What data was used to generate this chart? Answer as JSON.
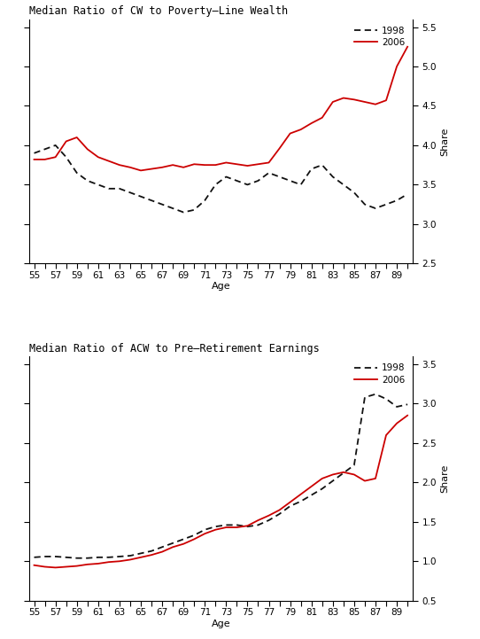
{
  "panel1": {
    "title": "Median Ratio of CW to Poverty–Line Wealth",
    "ylabel": "Share",
    "xlabel": "Age",
    "ylim": [
      2.5,
      5.6
    ],
    "yticks": [
      2.5,
      3.0,
      3.5,
      4.0,
      4.5,
      5.0,
      5.5
    ],
    "ages": [
      55,
      56,
      57,
      58,
      59,
      60,
      61,
      62,
      63,
      64,
      65,
      66,
      67,
      68,
      69,
      70,
      71,
      72,
      73,
      74,
      75,
      76,
      77,
      78,
      79,
      80,
      81,
      82,
      83,
      84,
      85,
      86,
      87,
      88,
      89,
      90
    ],
    "line_1998": [
      3.9,
      3.95,
      4.0,
      3.85,
      3.65,
      3.55,
      3.5,
      3.45,
      3.45,
      3.4,
      3.35,
      3.3,
      3.25,
      3.2,
      3.15,
      3.18,
      3.3,
      3.5,
      3.6,
      3.55,
      3.5,
      3.55,
      3.65,
      3.6,
      3.55,
      3.5,
      3.7,
      3.75,
      3.6,
      3.5,
      3.4,
      3.25,
      3.2,
      3.25,
      3.3,
      3.38
    ],
    "line_2006": [
      3.82,
      3.82,
      3.85,
      4.05,
      4.1,
      3.95,
      3.85,
      3.8,
      3.75,
      3.72,
      3.68,
      3.7,
      3.72,
      3.75,
      3.72,
      3.76,
      3.75,
      3.75,
      3.78,
      3.76,
      3.74,
      3.76,
      3.78,
      3.96,
      4.15,
      4.2,
      4.28,
      4.35,
      4.55,
      4.6,
      4.58,
      4.55,
      4.52,
      4.57,
      5.0,
      5.25
    ],
    "color_1998": "#111111",
    "color_2006": "#cc0000"
  },
  "panel2": {
    "title": "Median Ratio of ACW to Pre–Retirement Earnings",
    "ylabel": "Share",
    "xlabel": "Age",
    "ylim": [
      0.5,
      3.6
    ],
    "yticks": [
      0.5,
      1.0,
      1.5,
      2.0,
      2.5,
      3.0,
      3.5
    ],
    "ages": [
      55,
      56,
      57,
      58,
      59,
      60,
      61,
      62,
      63,
      64,
      65,
      66,
      67,
      68,
      69,
      70,
      71,
      72,
      73,
      74,
      75,
      76,
      77,
      78,
      79,
      80,
      81,
      82,
      83,
      84,
      85,
      86,
      87,
      88,
      89,
      90
    ],
    "line_1998": [
      1.05,
      1.06,
      1.06,
      1.05,
      1.04,
      1.04,
      1.05,
      1.05,
      1.06,
      1.07,
      1.1,
      1.13,
      1.18,
      1.23,
      1.28,
      1.33,
      1.4,
      1.44,
      1.46,
      1.46,
      1.44,
      1.46,
      1.52,
      1.6,
      1.7,
      1.76,
      1.84,
      1.92,
      2.02,
      2.12,
      2.22,
      3.08,
      3.12,
      3.06,
      2.96,
      2.99
    ],
    "line_2006": [
      0.95,
      0.93,
      0.92,
      0.93,
      0.94,
      0.96,
      0.97,
      0.99,
      1.0,
      1.02,
      1.05,
      1.08,
      1.12,
      1.18,
      1.22,
      1.28,
      1.35,
      1.4,
      1.43,
      1.43,
      1.45,
      1.52,
      1.58,
      1.65,
      1.75,
      1.85,
      1.95,
      2.05,
      2.1,
      2.13,
      2.1,
      2.02,
      2.05,
      2.6,
      2.75,
      2.85
    ],
    "color_1998": "#111111",
    "color_2006": "#cc0000"
  },
  "xtick_labeled": [
    55,
    57,
    59,
    61,
    63,
    65,
    67,
    69,
    71,
    73,
    75,
    77,
    79,
    81,
    83,
    85,
    87,
    89
  ],
  "background_color": "#ffffff",
  "font_size_title": 8.5,
  "font_size_label": 8,
  "font_size_tick": 7.5,
  "linewidth": 1.3
}
